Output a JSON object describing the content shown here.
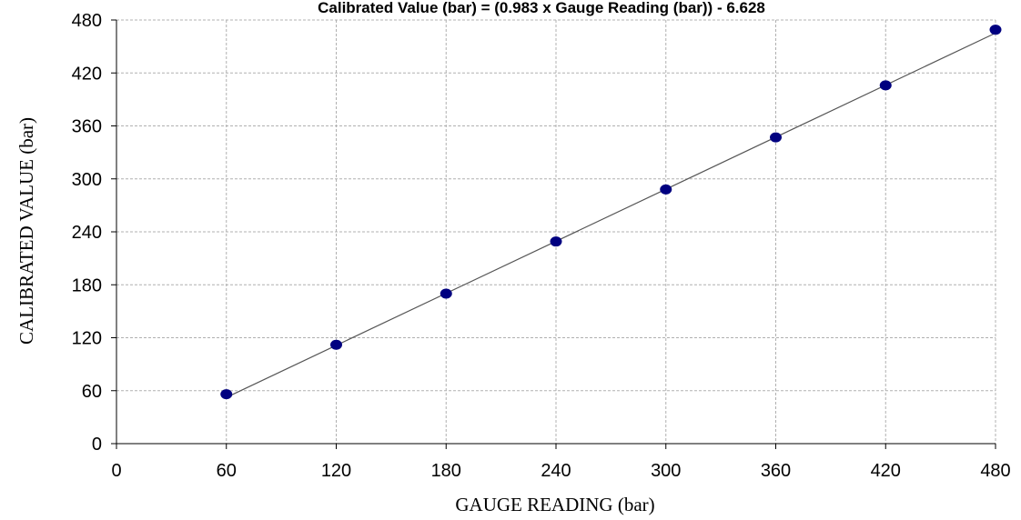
{
  "chart_data": {
    "type": "scatter",
    "title": "Calibrated Value (bar) = (0.983 x Gauge Reading (bar))  - 6.628",
    "xlabel": "GAUGE READING (bar)",
    "ylabel": "CALIBRATED VALUE (bar)",
    "xlim": [
      0,
      480
    ],
    "ylim": [
      0,
      480
    ],
    "x_ticks": [
      "0",
      "60",
      "120",
      "180",
      "240",
      "300",
      "360",
      "420",
      "480"
    ],
    "y_ticks": [
      "0",
      "60",
      "120",
      "180",
      "240",
      "300",
      "360",
      "420",
      "480"
    ],
    "grid": true,
    "legend": "none",
    "series": [
      {
        "x": [
          60,
          120,
          180,
          240,
          300,
          360,
          420,
          480
        ],
        "y": [
          56,
          112,
          170,
          229,
          288,
          347,
          406,
          469
        ],
        "marker_color": "#000080",
        "trendline": {
          "slope": 0.983,
          "intercept": -6.628,
          "color": "#555555"
        }
      }
    ]
  }
}
